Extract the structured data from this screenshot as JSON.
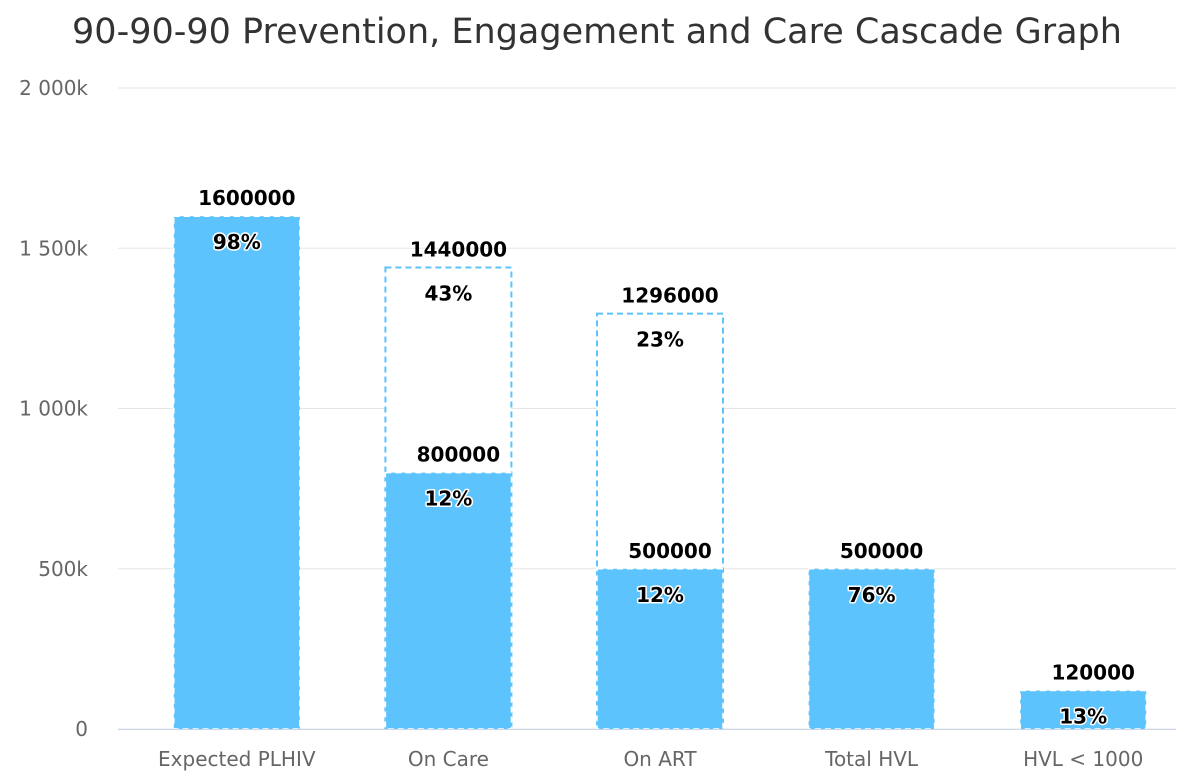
{
  "chart_data": {
    "type": "bar",
    "title": "90-90-90 Prevention, Engagement and Care Cascade Graph",
    "xlabel": "",
    "ylabel": "",
    "ylim": [
      0,
      2000000
    ],
    "yticks": [
      {
        "value": 0,
        "label": "0"
      },
      {
        "value": 500000,
        "label": "500k"
      },
      {
        "value": 1000000,
        "label": "1 000k"
      },
      {
        "value": 1500000,
        "label": "1 500k"
      },
      {
        "value": 2000000,
        "label": "2 000k"
      }
    ],
    "categories": [
      "Expected PLHIV",
      "On Care",
      "On ART",
      "Total HVL",
      "HVL < 1000"
    ],
    "grid": true,
    "legend": "none",
    "bar_color": "#5cc3fc",
    "target_border_color": "#5cc3fc",
    "series": [
      {
        "values": [
          null,
          1440000,
          1296000,
          null,
          null
        ],
        "value_labels": [
          "",
          "1440000",
          "1296000",
          "",
          ""
        ],
        "percent_labels": [
          "",
          "43%",
          "23%",
          "",
          ""
        ]
      },
      {
        "values": [
          1600000,
          800000,
          500000,
          500000,
          120000
        ],
        "value_labels": [
          "1600000",
          "800000",
          "500000",
          "500000",
          "120000"
        ],
        "percent_labels": [
          "98%",
          "12%",
          "12%",
          "76%",
          "13%"
        ]
      }
    ]
  }
}
